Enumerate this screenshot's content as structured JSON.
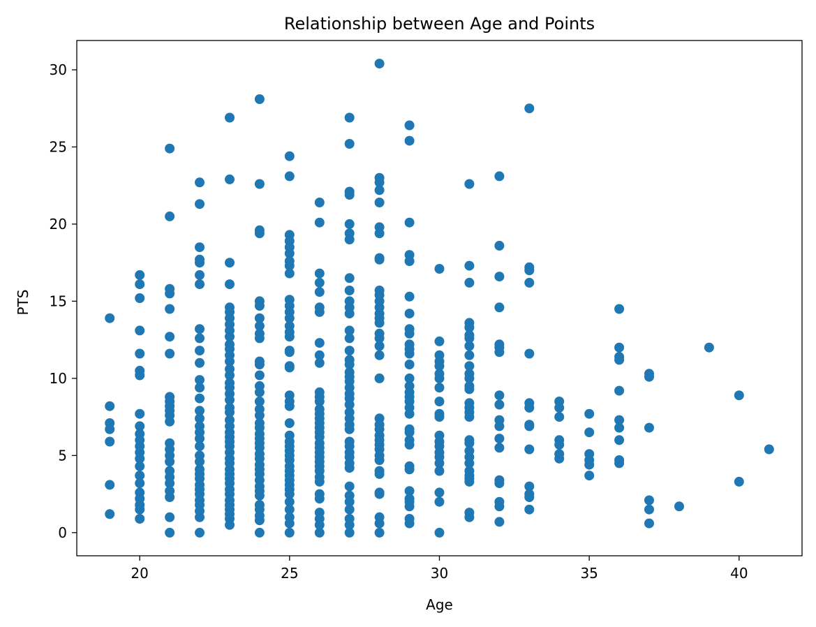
{
  "chart_data": {
    "type": "scatter",
    "title": "Relationship between Age and Points",
    "xlabel": "Age",
    "ylabel": "PTS",
    "xlim": [
      17.9,
      42.1
    ],
    "ylim": [
      -1.5,
      31.9
    ],
    "xticks": [
      20,
      25,
      30,
      35,
      40
    ],
    "yticks": [
      0,
      5,
      10,
      15,
      20,
      25,
      30
    ],
    "grid": false,
    "marker_color": "#1f77b4",
    "points": [
      {
        "age": 19,
        "pts": [
          13.9,
          8.2,
          7.1,
          6.7,
          5.9,
          3.1,
          1.2
        ]
      },
      {
        "age": 20,
        "pts": [
          16.7,
          16.1,
          15.2,
          13.1,
          11.6,
          10.5,
          10.2,
          7.7,
          6.9,
          6.4,
          6.0,
          5.6,
          5.2,
          4.8,
          4.3,
          3.7,
          3.2,
          2.6,
          2.2,
          1.8,
          1.5,
          0.9
        ]
      },
      {
        "age": 21,
        "pts": [
          24.9,
          20.5,
          15.8,
          15.5,
          14.5,
          12.7,
          11.6,
          8.8,
          8.5,
          8.2,
          7.9,
          7.6,
          7.2,
          5.8,
          5.4,
          5.0,
          4.6,
          4.0,
          3.6,
          3.2,
          2.7,
          2.3,
          1.0,
          0.0
        ]
      },
      {
        "age": 22,
        "pts": [
          22.7,
          21.3,
          18.5,
          17.7,
          17.5,
          16.7,
          16.1,
          13.2,
          12.6,
          11.8,
          11.0,
          9.9,
          9.4,
          8.7,
          7.9,
          7.4,
          6.9,
          6.5,
          6.1,
          5.6,
          5.0,
          4.6,
          4.1,
          3.8,
          3.5,
          3.1,
          2.8,
          2.5,
          2.1,
          1.8,
          1.4,
          1.0,
          0.0
        ]
      },
      {
        "age": 23,
        "pts": [
          26.9,
          22.9,
          17.5,
          16.1,
          14.6,
          14.3,
          13.9,
          13.5,
          13.1,
          12.7,
          12.2,
          11.9,
          11.5,
          11.1,
          10.6,
          10.2,
          9.7,
          9.4,
          9.0,
          8.6,
          8.1,
          7.8,
          7.3,
          6.9,
          6.5,
          6.2,
          5.9,
          5.6,
          5.2,
          4.8,
          4.5,
          4.1,
          3.8,
          3.5,
          3.2,
          2.8,
          2.5,
          2.1,
          1.8,
          1.5,
          1.2,
          0.9,
          0.5
        ]
      },
      {
        "age": 24,
        "pts": [
          28.1,
          22.6,
          19.6,
          19.4,
          15.0,
          14.7,
          13.9,
          13.4,
          12.9,
          12.6,
          11.1,
          10.9,
          10.2,
          9.5,
          9.1,
          8.5,
          8.0,
          7.6,
          7.1,
          6.8,
          6.4,
          6.1,
          5.8,
          5.5,
          5.1,
          4.8,
          4.4,
          4.1,
          3.8,
          3.4,
          3.0,
          2.7,
          2.4,
          1.8,
          1.5,
          1.1,
          0.8,
          0.0
        ]
      },
      {
        "age": 25,
        "pts": [
          24.4,
          23.1,
          19.3,
          18.9,
          18.5,
          18.1,
          17.6,
          17.3,
          16.8,
          15.1,
          14.7,
          14.3,
          13.9,
          13.4,
          13.0,
          12.7,
          11.8,
          11.7,
          10.8,
          10.7,
          8.9,
          8.5,
          8.2,
          7.1,
          6.3,
          5.9,
          5.6,
          5.3,
          5.0,
          4.7,
          4.3,
          4.0,
          3.7,
          3.4,
          3.1,
          2.8,
          2.5,
          2.0,
          1.5,
          1.0,
          0.6,
          0.0
        ]
      },
      {
        "age": 26,
        "pts": [
          21.4,
          20.1,
          16.8,
          16.2,
          15.6,
          14.6,
          14.3,
          12.3,
          11.5,
          11.0,
          9.1,
          8.8,
          8.5,
          8.0,
          7.7,
          7.4,
          7.1,
          6.8,
          6.5,
          6.2,
          5.8,
          5.5,
          5.2,
          4.9,
          4.6,
          4.3,
          4.0,
          3.6,
          3.3,
          2.5,
          2.2,
          1.3,
          0.9,
          0.5,
          0.0
        ]
      },
      {
        "age": 27,
        "pts": [
          26.9,
          25.2,
          22.1,
          21.9,
          20.0,
          19.4,
          19.0,
          16.5,
          15.7,
          15.0,
          14.6,
          14.2,
          13.1,
          12.6,
          11.8,
          11.2,
          10.9,
          10.4,
          10.1,
          9.8,
          9.4,
          9.0,
          8.7,
          8.3,
          7.8,
          7.4,
          7.0,
          6.7,
          5.9,
          5.6,
          5.2,
          4.9,
          4.5,
          4.2,
          3.0,
          2.4,
          2.0,
          1.5,
          0.9,
          0.5,
          0.0
        ]
      },
      {
        "age": 28,
        "pts": [
          30.4,
          23.0,
          22.7,
          22.2,
          21.4,
          19.8,
          19.4,
          17.8,
          17.7,
          15.7,
          15.4,
          15.0,
          14.6,
          14.2,
          13.9,
          13.6,
          12.9,
          12.6,
          12.1,
          11.5,
          10.0,
          7.4,
          7.0,
          6.7,
          6.3,
          6.0,
          5.7,
          5.4,
          5.0,
          4.7,
          4.0,
          3.8,
          2.6,
          2.5,
          1.0,
          0.6,
          0.0
        ]
      },
      {
        "age": 29,
        "pts": [
          26.4,
          25.4,
          20.1,
          18.0,
          17.6,
          15.3,
          14.2,
          13.2,
          12.9,
          12.2,
          11.9,
          11.6,
          10.9,
          10.0,
          9.5,
          9.1,
          8.8,
          8.5,
          8.1,
          7.7,
          6.7,
          6.5,
          6.0,
          5.7,
          4.3,
          4.1,
          2.7,
          2.2,
          2.0,
          1.7,
          0.9,
          0.6
        ]
      },
      {
        "age": 30,
        "pts": [
          17.1,
          12.4,
          11.5,
          11.1,
          10.8,
          10.3,
          10.0,
          9.4,
          8.5,
          7.7,
          7.5,
          6.3,
          5.9,
          5.6,
          5.2,
          4.9,
          4.5,
          4.0,
          2.6,
          2.0,
          0.0
        ]
      },
      {
        "age": 31,
        "pts": [
          22.6,
          17.3,
          16.2,
          13.6,
          13.3,
          12.8,
          12.6,
          12.1,
          11.5,
          10.8,
          10.3,
          10.0,
          9.5,
          9.3,
          8.4,
          8.1,
          7.8,
          7.5,
          6.0,
          5.8,
          5.3,
          4.9,
          4.5,
          4.0,
          3.7,
          3.5,
          3.3,
          1.3,
          1.0
        ]
      },
      {
        "age": 32,
        "pts": [
          23.1,
          18.6,
          16.6,
          14.6,
          12.2,
          12.0,
          11.7,
          8.9,
          8.3,
          7.3,
          6.9,
          6.1,
          5.5,
          3.4,
          3.2,
          2.0,
          1.7,
          0.7
        ]
      },
      {
        "age": 33,
        "pts": [
          27.5,
          17.2,
          17.0,
          16.2,
          11.6,
          8.4,
          8.1,
          7.0,
          6.9,
          5.4,
          3.0,
          2.5,
          2.3,
          1.5
        ]
      },
      {
        "age": 34,
        "pts": [
          8.5,
          8.1,
          7.5,
          6.0,
          5.7,
          5.1,
          4.8
        ]
      },
      {
        "age": 35,
        "pts": [
          7.7,
          6.5,
          5.1,
          4.7,
          4.4,
          3.7
        ]
      },
      {
        "age": 36,
        "pts": [
          14.5,
          12.0,
          11.4,
          11.2,
          9.2,
          7.3,
          6.8,
          6.0,
          4.7,
          4.5
        ]
      },
      {
        "age": 37,
        "pts": [
          10.3,
          10.1,
          6.8,
          2.1,
          1.5,
          0.6
        ]
      },
      {
        "age": 38,
        "pts": [
          1.7
        ]
      },
      {
        "age": 39,
        "pts": [
          12.0
        ]
      },
      {
        "age": 40,
        "pts": [
          8.9,
          3.3
        ]
      },
      {
        "age": 41,
        "pts": [
          5.4
        ]
      }
    ]
  }
}
